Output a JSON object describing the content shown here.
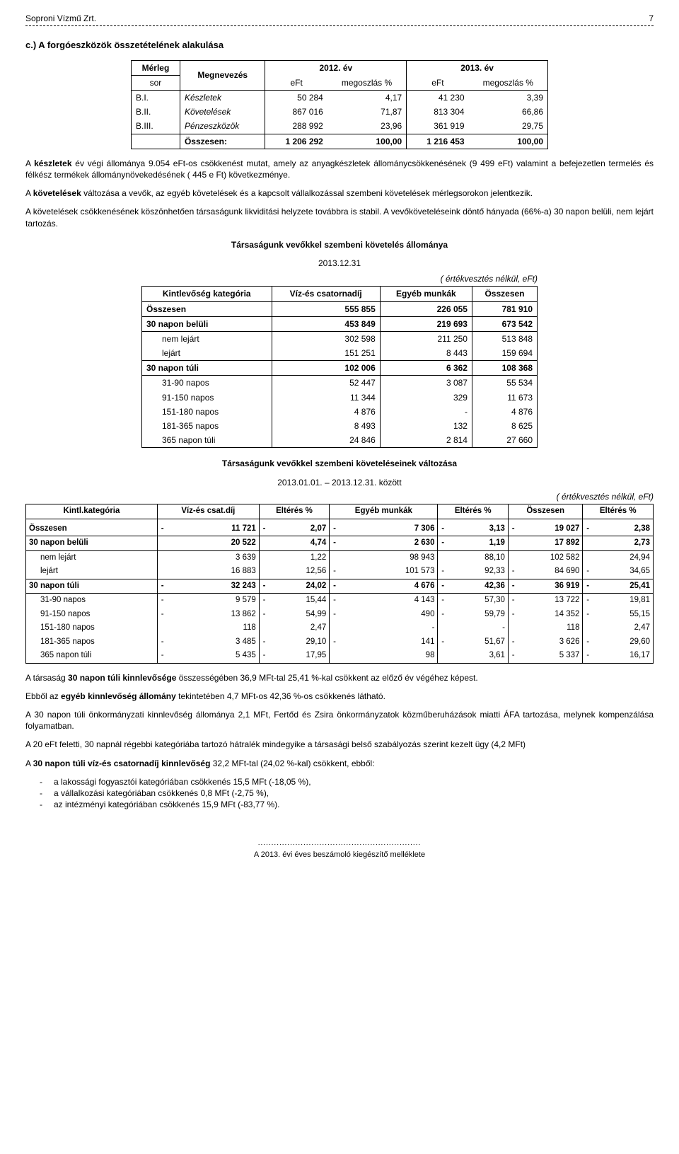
{
  "header": {
    "company": "Soproni Vízmű Zrt.",
    "page": "7"
  },
  "section_c_title": "c.) A forgóeszközök összetételének alakulása",
  "table1": {
    "type": "table",
    "col_headers": {
      "c1a": "Mérleg",
      "c1b": "sor",
      "c2": "Megnevezés",
      "y1": "2012. év",
      "y2": "2013. év",
      "sub1": "eFt",
      "sub2": "megoszlás %",
      "sub3": "eFt",
      "sub4": "megoszlás %"
    },
    "rows": [
      {
        "k": "B.I.",
        "n": "Készletek",
        "a": "50 284",
        "b": "4,17",
        "c": "41 230",
        "d": "3,39"
      },
      {
        "k": "B.II.",
        "n": "Követelések",
        "a": "867 016",
        "b": "71,87",
        "c": "813 304",
        "d": "66,86"
      },
      {
        "k": "B.III.",
        "n": "Pénzeszközök",
        "a": "288 992",
        "b": "23,96",
        "c": "361 919",
        "d": "29,75"
      }
    ],
    "total": {
      "n": "Összesen:",
      "a": "1 206 292",
      "b": "100,00",
      "c": "1 216 453",
      "d": "100,00"
    }
  },
  "para1": "A készletek év végi állománya 9.054 eFt-os csökkenést mutat, amely az anyagkészletek állománycsökkenésének (9 499 eFt) valamint a befejezetlen termelés és félkész termékek állománynövekedésének ( 445 e Ft) következménye.",
  "para1_bold": "készletek",
  "para2_pre": "A ",
  "para2_bold": "követelések",
  "para2_post": " változása a vevők, az egyéb követelések és a kapcsolt vállalkozással szembeni követelések mérlegsorokon jelentkezik.",
  "para3": "A követelések csökkenésének köszönhetően társaságunk likviditási helyzete továbbra is stabil. A vevőköveteléseink döntő hányada (66%-a) 30 napon belüli, nem lejárt tartozás.",
  "t2_title": "Társaságunk vevőkkel szembeni követelés állománya",
  "t2_date": "2013.12.31",
  "t2_note": "( értékvesztés nélkül, eFt)",
  "table2": {
    "type": "table",
    "headers": [
      "Kintlevőség kategória",
      "Víz-és csatornadíj",
      "Egyéb munkák",
      "Összesen"
    ],
    "rows": [
      {
        "lbl": "Összesen",
        "a": "555 855",
        "b": "226 055",
        "c": "781 910",
        "bold": true
      },
      {
        "lbl": "30 napon belüli",
        "a": "453 849",
        "b": "219 693",
        "c": "673 542",
        "bold": true
      },
      {
        "lbl": "nem lejárt",
        "a": "302 598",
        "b": "211 250",
        "c": "513 848",
        "indent": 1
      },
      {
        "lbl": "lejárt",
        "a": "151 251",
        "b": "8 443",
        "c": "159 694",
        "indent": 1
      },
      {
        "lbl": "30 napon túli",
        "a": "102 006",
        "b": "6 362",
        "c": "108 368",
        "bold": true
      },
      {
        "lbl": "31-90 napos",
        "a": "52 447",
        "b": "3 087",
        "c": "55 534",
        "indent": 1
      },
      {
        "lbl": "91-150 napos",
        "a": "11 344",
        "b": "329",
        "c": "11 673",
        "indent": 1
      },
      {
        "lbl": "151-180 napos",
        "a": "4 876",
        "b": "-",
        "c": "4 876",
        "indent": 1
      },
      {
        "lbl": "181-365 napos",
        "a": "8 493",
        "b": "132",
        "c": "8 625",
        "indent": 1
      },
      {
        "lbl": "365 napon túli",
        "a": "24 846",
        "b": "2 814",
        "c": "27 660",
        "indent": 1
      }
    ]
  },
  "t3_title": "Társaságunk vevőkkel szembeni követeléseinek változása",
  "t3_date": "2013.01.01. – 2013.12.31. között",
  "t3_note": "( értékvesztés nélkül, eFt)",
  "table3": {
    "type": "table",
    "headers": [
      "Kintl.kategória",
      "Víz-és csat.díj",
      "Eltérés %",
      "Egyéb munkák",
      "Eltérés %",
      "Összesen",
      "Eltérés %"
    ],
    "rows": [
      {
        "lbl": "Összesen",
        "s1": "-",
        "a": "11 721",
        "s2": "-",
        "b": "2,07",
        "s3": "-",
        "c": "7 306",
        "s4": "-",
        "d": "3,13",
        "s5": "-",
        "e": "19 027",
        "s6": "-",
        "f": "2,38",
        "bold": true
      },
      {
        "lbl": "30 napon belüli",
        "s1": "",
        "a": "20 522",
        "s2": "",
        "b": "4,74",
        "s3": "-",
        "c": "2 630",
        "s4": "-",
        "d": "1,19",
        "s5": "",
        "e": "17 892",
        "s6": "",
        "f": "2,73",
        "bold": true
      },
      {
        "lbl": "nem lejárt",
        "s1": "",
        "a": "3 639",
        "s2": "",
        "b": "1,22",
        "s3": "",
        "c": "98 943",
        "s4": "",
        "d": "88,10",
        "s5": "",
        "e": "102 582",
        "s6": "",
        "f": "24,94",
        "indent": 1
      },
      {
        "lbl": "lejárt",
        "s1": "",
        "a": "16 883",
        "s2": "",
        "b": "12,56",
        "s3": "-",
        "c": "101 573",
        "s4": "-",
        "d": "92,33",
        "s5": "-",
        "e": "84 690",
        "s6": "-",
        "f": "34,65",
        "indent": 1
      },
      {
        "lbl": "30 napon túli",
        "s1": "-",
        "a": "32 243",
        "s2": "-",
        "b": "24,02",
        "s3": "-",
        "c": "4 676",
        "s4": "-",
        "d": "42,36",
        "s5": "-",
        "e": "36 919",
        "s6": "-",
        "f": "25,41",
        "bold": true
      },
      {
        "lbl": "31-90 napos",
        "s1": "-",
        "a": "9 579",
        "s2": "-",
        "b": "15,44",
        "s3": "-",
        "c": "4 143",
        "s4": "-",
        "d": "57,30",
        "s5": "-",
        "e": "13 722",
        "s6": "-",
        "f": "19,81",
        "indent": 1
      },
      {
        "lbl": "91-150 napos",
        "s1": "-",
        "a": "13 862",
        "s2": "-",
        "b": "54,99",
        "s3": "-",
        "c": "490",
        "s4": "-",
        "d": "59,79",
        "s5": "-",
        "e": "14 352",
        "s6": "-",
        "f": "55,15",
        "indent": 1
      },
      {
        "lbl": "151-180 napos",
        "s1": "",
        "a": "118",
        "s2": "",
        "b": "2,47",
        "s3": "",
        "c": "-",
        "s4": "",
        "d": "-",
        "s5": "",
        "e": "118",
        "s6": "",
        "f": "2,47",
        "indent": 1
      },
      {
        "lbl": "181-365 napos",
        "s1": "-",
        "a": "3 485",
        "s2": "-",
        "b": "29,10",
        "s3": "-",
        "c": "141",
        "s4": "-",
        "d": "51,67",
        "s5": "-",
        "e": "3 626",
        "s6": "-",
        "f": "29,60",
        "indent": 1
      },
      {
        "lbl": "365 napon túli",
        "s1": "-",
        "a": "5 435",
        "s2": "-",
        "b": "17,95",
        "s3": "",
        "c": "98",
        "s4": "",
        "d": "3,61",
        "s5": "-",
        "e": "5 337",
        "s6": "-",
        "f": "16,17",
        "indent": 1
      }
    ]
  },
  "para4_pre": "A társaság ",
  "para4_bold": "30 napon túli kinnlevősége",
  "para4_post": " összességében 36,9 MFt-tal 25,41 %-kal csökkent az előző év végéhez képest.",
  "para5_pre": "Ebből az ",
  "para5_bold": "egyéb kinnlevőség állomány",
  "para5_post": " tekintetében 4,7 MFt-os 42,36 %-os csökkenés látható.",
  "para6": "A 30 napon túli önkormányzati kinnlevőség állománya 2,1 MFt, Fertőd és Zsira önkormányzatok közműberuházások miatti ÁFA tartozása, melynek kompenzálása folyamatban.",
  "para7": "A 20 eFt feletti, 30 napnál régebbi kategóriába tartozó hátralék mindegyike a társasági belső szabályozás szerint kezelt ügy (4,2 MFt)",
  "para8_pre": "A ",
  "para8_bold": "30 napon túli víz-és csatornadíj kinnlevőség",
  "para8_post": " 32,2 MFt-tal (24,02 %-kal) csökkent, ebből:",
  "bullets": [
    "a lakossági fogyasztói kategóriában csökkenés 15,5 MFt (-18,05 %),",
    "a vállalkozási kategóriában csökkenés 0,8 MFt (-2,75 %),",
    "az intézményi kategóriában csökkenés 15,9 MFt (-83,77 %)."
  ],
  "footer": "A 2013. évi éves beszámoló kiegészítő melléklete"
}
